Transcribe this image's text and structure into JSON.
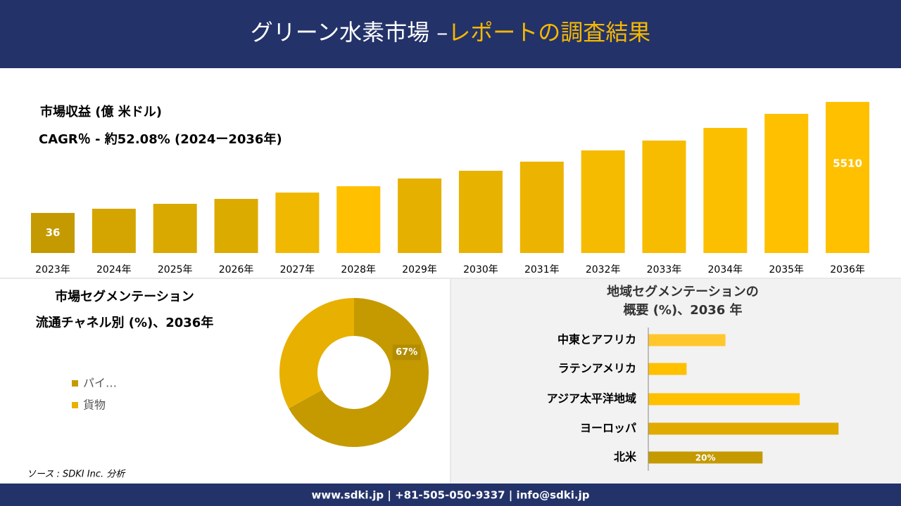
{
  "header": {
    "title": "グリーン水素市場 –",
    "title_highlight": "レポートの調査結果"
  },
  "chart_data": [
    {
      "type": "bar",
      "title": "市場収益 (億 米ドル)",
      "subtitle": "CAGR％ - 約52.08% (2024ー2036年)",
      "categories": [
        "2023年",
        "2024年",
        "2025年",
        "2026年",
        "2027年",
        "2028年",
        "2029年",
        "2030年",
        "2031年",
        "2032年",
        "2033年",
        "2034年",
        "2035年",
        "2036年"
      ],
      "values": [
        36,
        244,
        486,
        729,
        1040,
        1353,
        1734,
        2115,
        2565,
        3120,
        3604,
        4228,
        4921,
        5510
      ],
      "value_labels": [
        "36",
        null,
        null,
        null,
        null,
        null,
        null,
        null,
        null,
        null,
        null,
        null,
        null,
        "5510"
      ],
      "colors": [
        "#c49a00",
        "#d4a500",
        "#d9a900",
        "#dcab00",
        "#f0b800",
        "#ffc000",
        "#e6b000",
        "#e8b200",
        "#ecb400",
        "#f5bb00",
        "#f7bc00",
        "#fcbf00",
        "#ffc000",
        "#ffc000"
      ],
      "ylim": [
        -1939,
        6030
      ]
    },
    {
      "type": "donut",
      "title": [
        "市場セグメンテーション",
        "流通チャネル別 (%)、2036年"
      ],
      "series": [
        {
          "name": "パイ…",
          "color": "#c49a00",
          "values": [
            67
          ],
          "value_labels": [
            "67%"
          ]
        },
        {
          "name": "貨物",
          "color": "#e8b000",
          "values": [
            33
          ]
        }
      ]
    },
    {
      "type": "hbar",
      "title": [
        "地域セグメンテーションの",
        "概要 (%)、2036 年"
      ],
      "categories": [
        "中東とアフリカ",
        "ラテンアメリカ",
        "アジア太平洋地域",
        "ヨーロッパ",
        "北米"
      ],
      "values": [
        13.5,
        6.7,
        26.5,
        33.3,
        20
      ],
      "value_labels": [
        null,
        null,
        null,
        null,
        "20%"
      ],
      "colors": [
        "#ffc72c",
        "#ffc000",
        "#ffc000",
        "#e0aa00",
        "#c49a00"
      ],
      "xlim": [
        0,
        43
      ]
    }
  ],
  "source": "ソース : SDKI Inc. 分析",
  "footer": {
    "contact": "www.sdki.jp | +81-505-050-9337 | info@sdki.jp"
  }
}
